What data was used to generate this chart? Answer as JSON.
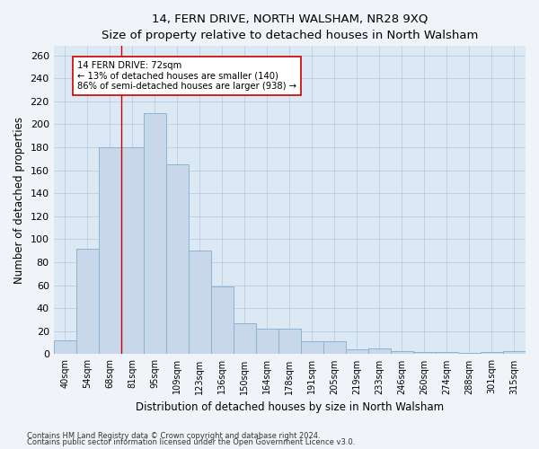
{
  "title": "14, FERN DRIVE, NORTH WALSHAM, NR28 9XQ",
  "subtitle": "Size of property relative to detached houses in North Walsham",
  "xlabel": "Distribution of detached houses by size in North Walsham",
  "ylabel": "Number of detached properties",
  "bar_labels": [
    "40sqm",
    "54sqm",
    "68sqm",
    "81sqm",
    "95sqm",
    "109sqm",
    "123sqm",
    "136sqm",
    "150sqm",
    "164sqm",
    "178sqm",
    "191sqm",
    "205sqm",
    "219sqm",
    "233sqm",
    "246sqm",
    "260sqm",
    "274sqm",
    "288sqm",
    "301sqm",
    "315sqm"
  ],
  "bar_values": [
    12,
    92,
    180,
    180,
    210,
    165,
    90,
    59,
    27,
    22,
    22,
    11,
    11,
    4,
    5,
    3,
    2,
    2,
    1,
    2,
    3
  ],
  "bar_color": "#c8d8ea",
  "bar_edge_color": "#8ab4d0",
  "grid_color": "#b8cfe0",
  "background_color": "#dce8f4",
  "fig_background_color": "#f0f4f8",
  "vline_color": "#cc0000",
  "vline_x_index": 2.5,
  "annotation_text": "14 FERN DRIVE: 72sqm\n← 13% of detached houses are smaller (140)\n86% of semi-detached houses are larger (938) →",
  "annotation_box_color": "#ffffff",
  "annotation_box_edge_color": "#cc0000",
  "ylim": [
    0,
    268
  ],
  "yticks": [
    0,
    20,
    40,
    60,
    80,
    100,
    120,
    140,
    160,
    180,
    200,
    220,
    240,
    260
  ],
  "footer_line1": "Contains HM Land Registry data © Crown copyright and database right 2024.",
  "footer_line2": "Contains public sector information licensed under the Open Government Licence v3.0."
}
